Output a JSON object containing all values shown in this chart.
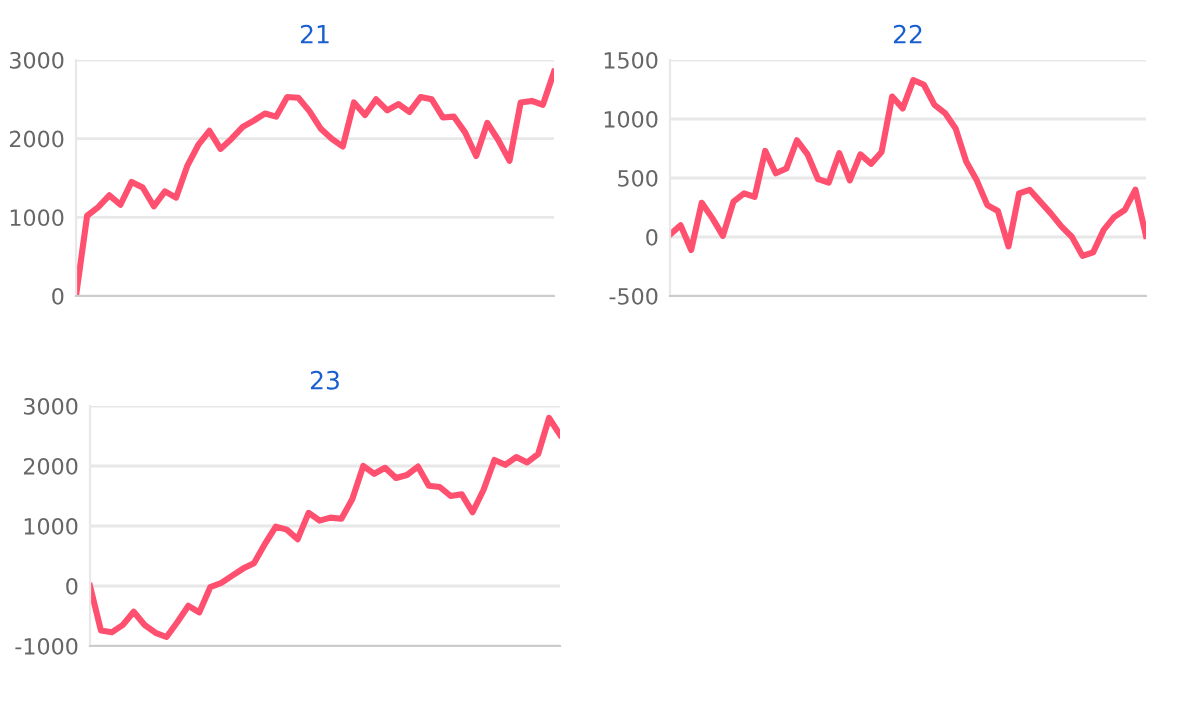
{
  "chart_data": [
    {
      "type": "line",
      "title": "21",
      "categories": [
        null,
        null,
        null,
        null,
        null,
        null,
        null,
        null,
        null,
        null,
        null,
        null,
        null,
        null,
        null,
        null,
        null,
        null,
        null,
        null,
        null,
        null,
        null,
        null,
        null,
        null,
        null,
        null,
        null,
        null,
        null,
        null,
        null,
        null,
        null,
        null,
        null,
        null,
        null,
        null,
        null,
        null,
        null,
        null
      ],
      "series": [
        {
          "color": "#ff5070",
          "values": [
            0,
            1020,
            1130,
            1280,
            1160,
            1450,
            1380,
            1140,
            1330,
            1250,
            1650,
            1920,
            2100,
            1870,
            2000,
            2150,
            2230,
            2320,
            2280,
            2530,
            2520,
            2350,
            2130,
            2000,
            1900,
            2460,
            2300,
            2500,
            2360,
            2440,
            2340,
            2530,
            2500,
            2270,
            2280,
            2080,
            1780,
            2200,
            1980,
            1720,
            2460,
            2480,
            2430,
            2850
          ]
        }
      ],
      "ylim": [
        0,
        3000
      ],
      "yticks": [
        0,
        1000,
        2000,
        3000
      ],
      "grid": "y",
      "marker": "none",
      "line_style": "solid"
    },
    {
      "type": "line",
      "title": "22",
      "categories": [
        null,
        null,
        null,
        null,
        null,
        null,
        null,
        null,
        null,
        null,
        null,
        null,
        null,
        null,
        null,
        null,
        null,
        null,
        null,
        null,
        null,
        null,
        null,
        null,
        null,
        null,
        null,
        null,
        null,
        null,
        null,
        null,
        null,
        null,
        null,
        null,
        null,
        null,
        null,
        null,
        null,
        null,
        null,
        null,
        null,
        null
      ],
      "series": [
        {
          "color": "#ff5070",
          "values": [
            20,
            100,
            -110,
            290,
            160,
            10,
            300,
            370,
            340,
            730,
            540,
            580,
            820,
            700,
            490,
            460,
            710,
            480,
            700,
            620,
            720,
            1190,
            1090,
            1330,
            1290,
            1120,
            1050,
            920,
            640,
            480,
            270,
            220,
            -80,
            370,
            400,
            300,
            200,
            90,
            0,
            -160,
            -130,
            60,
            170,
            230,
            400,
            10
          ]
        }
      ],
      "ylim": [
        -500,
        1500
      ],
      "yticks": [
        -500,
        0,
        500,
        1000,
        1500
      ],
      "grid": "y",
      "marker": "none",
      "line_style": "solid"
    },
    {
      "type": "line",
      "title": "23",
      "categories": [
        null,
        null,
        null,
        null,
        null,
        null,
        null,
        null,
        null,
        null,
        null,
        null,
        null,
        null,
        null,
        null,
        null,
        null,
        null,
        null,
        null,
        null,
        null,
        null,
        null,
        null,
        null,
        null,
        null,
        null,
        null,
        null,
        null,
        null,
        null,
        null,
        null,
        null,
        null,
        null,
        null,
        null,
        null,
        null
      ],
      "series": [
        {
          "color": "#ff5070",
          "values": [
            0,
            -740,
            -770,
            -650,
            -430,
            -650,
            -780,
            -850,
            -600,
            -330,
            -440,
            -20,
            50,
            170,
            290,
            380,
            700,
            990,
            940,
            780,
            1220,
            1090,
            1140,
            1120,
            1450,
            2000,
            1870,
            1970,
            1800,
            1850,
            1990,
            1670,
            1650,
            1500,
            1530,
            1230,
            1600,
            2100,
            2020,
            2150,
            2060,
            2200,
            2800,
            2520
          ]
        }
      ],
      "ylim": [
        -1000,
        3000
      ],
      "yticks": [
        -1000,
        0,
        1000,
        2000,
        3000
      ],
      "grid": "y",
      "marker": "none",
      "line_style": "solid"
    }
  ]
}
